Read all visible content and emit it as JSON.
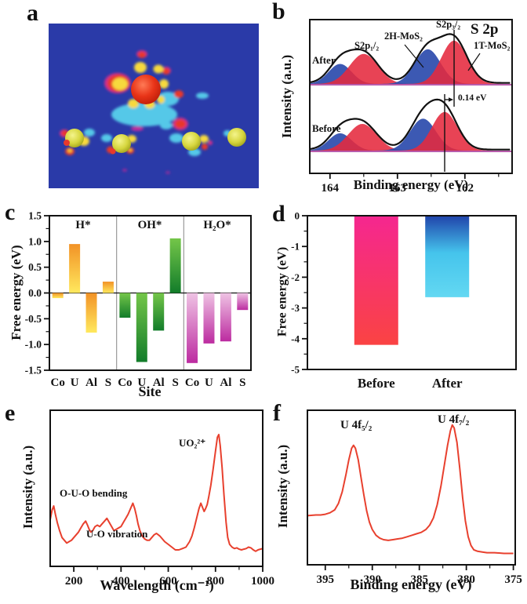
{
  "panels": {
    "a": "a",
    "b": "b",
    "c": "c",
    "d": "d",
    "e": "e",
    "f": "f"
  },
  "chart_data": [
    {
      "id": "b",
      "type": "line",
      "corner_label": "S 2p",
      "xlabel": "Binding energy (eV)",
      "ylabel": "Intensity (a.u.)",
      "x_ticks": [
        164,
        163,
        162
      ],
      "x_minor_ticks": [
        163.5,
        162.5,
        161.5
      ],
      "x_range": [
        164.3,
        161.3
      ],
      "peak_labels": {
        "s2p12": "S2p₁/₂",
        "h2": "2H-MoS₂",
        "s2p32": "S2p₃/₂",
        "t1": "1T-MoS₂"
      },
      "colors": {
        "component_blue": "#2B4BAD",
        "component_red": "#E5293E",
        "envelope": "#111111",
        "baseline": "#A02790"
      },
      "spectra": [
        {
          "name": "After",
          "components": [
            {
              "center": 163.85,
              "amp": 0.3,
              "sigma": 0.17,
              "color": "blue"
            },
            {
              "center": 163.5,
              "amp": 0.45,
              "sigma": 0.21,
              "color": "red"
            },
            {
              "center": 162.55,
              "amp": 0.52,
              "sigma": 0.19,
              "color": "blue"
            },
            {
              "center": 162.16,
              "amp": 0.65,
              "sigma": 0.19,
              "color": "red"
            }
          ]
        },
        {
          "name": "Before",
          "components": [
            {
              "center": 163.85,
              "amp": 0.26,
              "sigma": 0.17,
              "color": "blue"
            },
            {
              "center": 163.52,
              "amp": 0.4,
              "sigma": 0.21,
              "color": "red"
            },
            {
              "center": 162.62,
              "amp": 0.48,
              "sigma": 0.19,
              "color": "blue"
            },
            {
              "center": 162.3,
              "amp": 0.58,
              "sigma": 0.19,
              "color": "red"
            }
          ]
        }
      ],
      "shift": {
        "label": "0.14 eV",
        "after_peak_ev": 162.16,
        "before_peak_ev": 162.3
      }
    },
    {
      "id": "c",
      "type": "bar",
      "xlabel": "Site",
      "ylabel": "Free energy (eV)",
      "ylim": [
        -1.5,
        1.5
      ],
      "yticks": [
        1.5,
        1.0,
        0.5,
        0.0,
        -0.5,
        -1.0,
        -1.5
      ],
      "categories": [
        "Co",
        "U",
        "Al",
        "S"
      ],
      "groups": [
        {
          "label": "H*",
          "values": [
            -0.1,
            0.95,
            -0.77,
            0.22
          ],
          "gradient": [
            [
              "0%",
              "#F29226"
            ],
            [
              "100%",
              "#FFE95E"
            ]
          ]
        },
        {
          "label": "OH*",
          "values": [
            -0.48,
            -1.34,
            -0.73,
            1.06
          ],
          "gradient": [
            [
              "0%",
              "#74C649"
            ],
            [
              "100%",
              "#127C2A"
            ]
          ]
        },
        {
          "label": "H₂O*",
          "values": [
            -1.36,
            -0.98,
            -0.94,
            -0.33
          ],
          "gradient": [
            [
              "0%",
              "#EFC3E4"
            ],
            [
              "100%",
              "#BC2BA0"
            ]
          ]
        }
      ]
    },
    {
      "id": "d",
      "type": "bar",
      "ylabel": "Free energy (eV)",
      "ylim": [
        -5,
        0
      ],
      "yticks": [
        0,
        -1,
        -2,
        -3,
        -4,
        -5
      ],
      "categories": [
        "Before",
        "After"
      ],
      "values": [
        -4.2,
        -2.65
      ],
      "gradients": [
        [
          [
            "0%",
            "#F5278F"
          ],
          [
            "100%",
            "#FA4343"
          ]
        ],
        [
          [
            "0%",
            "#2146AC"
          ],
          [
            "45%",
            "#45C4EC"
          ],
          [
            "100%",
            "#63D8F2"
          ]
        ]
      ]
    },
    {
      "id": "e",
      "type": "line",
      "color": "#E8402E",
      "xlabel": "Wavelength (cm⁻¹)",
      "ylabel": "Intensity (a.u.)",
      "x_ticks": [
        200,
        400,
        600,
        800,
        1000
      ],
      "x_minor_ticks": [
        300,
        500,
        700,
        900
      ],
      "x_range": [
        100,
        1000
      ],
      "annotations": {
        "peak": "UO₂²⁺",
        "bending": "O-U-O bending",
        "vibration": "U-O vibration"
      },
      "points": [
        [
          100,
          0.3
        ],
        [
          108,
          0.37
        ],
        [
          115,
          0.4
        ],
        [
          122,
          0.34
        ],
        [
          130,
          0.28
        ],
        [
          140,
          0.22
        ],
        [
          150,
          0.17
        ],
        [
          160,
          0.15
        ],
        [
          170,
          0.13
        ],
        [
          180,
          0.14
        ],
        [
          190,
          0.15
        ],
        [
          200,
          0.17
        ],
        [
          210,
          0.19
        ],
        [
          220,
          0.21
        ],
        [
          230,
          0.24
        ],
        [
          240,
          0.27
        ],
        [
          250,
          0.29
        ],
        [
          258,
          0.26
        ],
        [
          265,
          0.23
        ],
        [
          272,
          0.21
        ],
        [
          280,
          0.22
        ],
        [
          290,
          0.25
        ],
        [
          300,
          0.26
        ],
        [
          310,
          0.25
        ],
        [
          320,
          0.27
        ],
        [
          330,
          0.29
        ],
        [
          340,
          0.31
        ],
        [
          350,
          0.28
        ],
        [
          360,
          0.25
        ],
        [
          370,
          0.22
        ],
        [
          380,
          0.23
        ],
        [
          390,
          0.24
        ],
        [
          400,
          0.25
        ],
        [
          410,
          0.28
        ],
        [
          420,
          0.31
        ],
        [
          430,
          0.34
        ],
        [
          440,
          0.38
        ],
        [
          450,
          0.42
        ],
        [
          458,
          0.38
        ],
        [
          465,
          0.33
        ],
        [
          472,
          0.27
        ],
        [
          480,
          0.22
        ],
        [
          490,
          0.18
        ],
        [
          500,
          0.16
        ],
        [
          510,
          0.15
        ],
        [
          520,
          0.15
        ],
        [
          530,
          0.17
        ],
        [
          540,
          0.19
        ],
        [
          550,
          0.2
        ],
        [
          558,
          0.19
        ],
        [
          565,
          0.18
        ],
        [
          575,
          0.16
        ],
        [
          585,
          0.14
        ],
        [
          600,
          0.12
        ],
        [
          615,
          0.1
        ],
        [
          630,
          0.08
        ],
        [
          645,
          0.08
        ],
        [
          660,
          0.09
        ],
        [
          675,
          0.1
        ],
        [
          690,
          0.14
        ],
        [
          700,
          0.18
        ],
        [
          710,
          0.24
        ],
        [
          720,
          0.31
        ],
        [
          730,
          0.38
        ],
        [
          738,
          0.42
        ],
        [
          745,
          0.39
        ],
        [
          752,
          0.36
        ],
        [
          758,
          0.38
        ],
        [
          765,
          0.41
        ],
        [
          772,
          0.47
        ],
        [
          780,
          0.55
        ],
        [
          790,
          0.67
        ],
        [
          800,
          0.8
        ],
        [
          808,
          0.9
        ],
        [
          814,
          0.92
        ],
        [
          820,
          0.84
        ],
        [
          828,
          0.68
        ],
        [
          836,
          0.48
        ],
        [
          845,
          0.28
        ],
        [
          852,
          0.17
        ],
        [
          860,
          0.12
        ],
        [
          870,
          0.1
        ],
        [
          880,
          0.09
        ],
        [
          890,
          0.095
        ],
        [
          900,
          0.085
        ],
        [
          910,
          0.08
        ],
        [
          920,
          0.085
        ],
        [
          930,
          0.09
        ],
        [
          940,
          0.1
        ],
        [
          950,
          0.095
        ],
        [
          960,
          0.08
        ],
        [
          970,
          0.07
        ],
        [
          980,
          0.08
        ],
        [
          990,
          0.085
        ],
        [
          1000,
          0.09
        ]
      ]
    },
    {
      "id": "f",
      "type": "line",
      "color": "#E8402E",
      "xlabel": "Binding energy (eV)",
      "ylabel": "Intensity (a.u.)",
      "x_ticks": [
        395,
        390,
        385,
        380,
        375
      ],
      "x_minor_ticks": [
        392.5,
        387.5,
        382.5,
        377.5
      ],
      "x_range": [
        396.9,
        374.8
      ],
      "annotations": {
        "f52": "U 4f₅/₂",
        "f72": "U 4f₇/₂"
      },
      "points": [
        [
          396.9,
          0.295
        ],
        [
          396,
          0.3
        ],
        [
          395.5,
          0.3
        ],
        [
          395,
          0.305
        ],
        [
          394.5,
          0.315
        ],
        [
          394,
          0.335
        ],
        [
          393.6,
          0.38
        ],
        [
          393.2,
          0.46
        ],
        [
          392.8,
          0.58
        ],
        [
          392.5,
          0.68
        ],
        [
          392.2,
          0.76
        ],
        [
          392.0,
          0.78
        ],
        [
          391.8,
          0.76
        ],
        [
          391.5,
          0.68
        ],
        [
          391.2,
          0.56
        ],
        [
          390.9,
          0.44
        ],
        [
          390.6,
          0.33
        ],
        [
          390.3,
          0.25
        ],
        [
          390,
          0.2
        ],
        [
          389.6,
          0.16
        ],
        [
          389.2,
          0.14
        ],
        [
          388.8,
          0.13
        ],
        [
          388.3,
          0.125
        ],
        [
          387.8,
          0.13
        ],
        [
          387.3,
          0.135
        ],
        [
          386.8,
          0.14
        ],
        [
          386.3,
          0.15
        ],
        [
          385.8,
          0.16
        ],
        [
          385.3,
          0.17
        ],
        [
          384.8,
          0.18
        ],
        [
          384.3,
          0.2
        ],
        [
          383.9,
          0.23
        ],
        [
          383.5,
          0.28
        ],
        [
          383.1,
          0.37
        ],
        [
          382.7,
          0.5
        ],
        [
          382.3,
          0.66
        ],
        [
          382.0,
          0.78
        ],
        [
          381.7,
          0.88
        ],
        [
          381.5,
          0.92
        ],
        [
          381.3,
          0.9
        ],
        [
          381.0,
          0.8
        ],
        [
          380.7,
          0.62
        ],
        [
          380.4,
          0.42
        ],
        [
          380.1,
          0.26
        ],
        [
          379.8,
          0.15
        ],
        [
          379.5,
          0.09
        ],
        [
          379.2,
          0.06
        ],
        [
          378.8,
          0.05
        ],
        [
          378.3,
          0.045
        ],
        [
          377.8,
          0.04
        ],
        [
          377,
          0.04
        ],
        [
          376,
          0.035
        ],
        [
          375,
          0.035
        ]
      ]
    }
  ]
}
